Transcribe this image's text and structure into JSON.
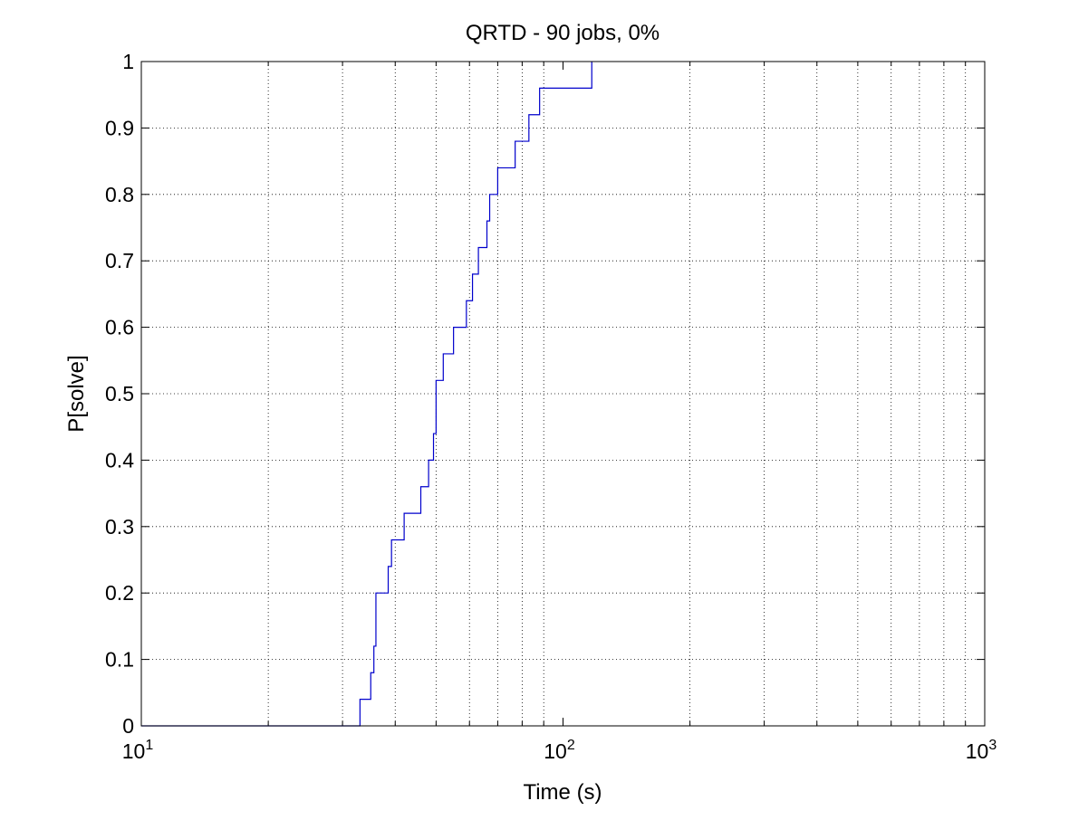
{
  "chart_data": {
    "type": "line",
    "step": true,
    "title": "QRTD - 90 jobs, 0%",
    "xlabel": "Time (s)",
    "ylabel": "P[solve]",
    "xscale": "log",
    "xlim": [
      10,
      1000
    ],
    "ylim": [
      0,
      1
    ],
    "grid": true,
    "x_ticks": [
      {
        "value": 10,
        "base": "10",
        "exp": "1"
      },
      {
        "value": 100,
        "base": "10",
        "exp": "2"
      },
      {
        "value": 1000,
        "base": "10",
        "exp": "3"
      }
    ],
    "y_ticks": [
      {
        "value": 0,
        "label": "0"
      },
      {
        "value": 0.1,
        "label": "0.1"
      },
      {
        "value": 0.2,
        "label": "0.2"
      },
      {
        "value": 0.3,
        "label": "0.3"
      },
      {
        "value": 0.4,
        "label": "0.4"
      },
      {
        "value": 0.5,
        "label": "0.5"
      },
      {
        "value": 0.6,
        "label": "0.6"
      },
      {
        "value": 0.7,
        "label": "0.7"
      },
      {
        "value": 0.8,
        "label": "0.8"
      },
      {
        "value": 0.9,
        "label": "0.9"
      },
      {
        "value": 1,
        "label": "1"
      }
    ],
    "series": [
      {
        "color": "#0000cc",
        "x": [
          33,
          35,
          35.6,
          36,
          38.5,
          39.2,
          39.6,
          42,
          46,
          48,
          49.3,
          50,
          52,
          55,
          59,
          61,
          63,
          66,
          67,
          70,
          77,
          83,
          88,
          117
        ],
        "y": [
          0.04,
          0.08,
          0.12,
          0.2,
          0.24,
          0.28,
          0.28,
          0.32,
          0.36,
          0.4,
          0.44,
          0.52,
          0.56,
          0.6,
          0.64,
          0.68,
          0.72,
          0.76,
          0.8,
          0.84,
          0.88,
          0.92,
          0.96,
          1.0
        ]
      }
    ]
  }
}
